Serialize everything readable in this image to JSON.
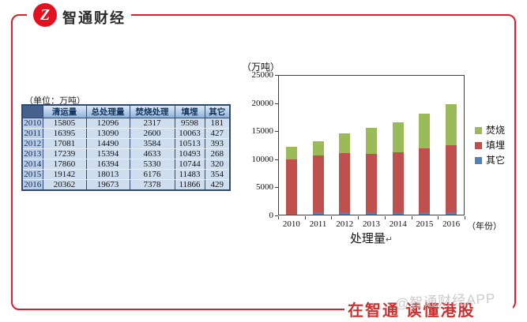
{
  "brand": {
    "logo_letter": "Z",
    "title": "智通财经",
    "accent_color": "#e31c2d"
  },
  "table": {
    "unit_caption": "（单位：万吨）",
    "columns": [
      "",
      "清运量",
      "总处理量",
      "焚烧处理",
      "填埋",
      "其它"
    ],
    "rows": [
      [
        "2010",
        "15805",
        "12096",
        "2317",
        "9598",
        "181"
      ],
      [
        "2011",
        "16395",
        "13090",
        "2600",
        "10063",
        "427"
      ],
      [
        "2012",
        "17081",
        "14490",
        "3584",
        "10513",
        "393"
      ],
      [
        "2013",
        "17239",
        "15394",
        "4633",
        "10493",
        "268"
      ],
      [
        "2014",
        "17860",
        "16394",
        "5330",
        "10744",
        "320"
      ],
      [
        "2015",
        "19142",
        "18013",
        "6176",
        "11483",
        "354"
      ],
      [
        "2016",
        "20362",
        "19673",
        "7378",
        "11866",
        "429"
      ]
    ]
  },
  "chart_data": {
    "type": "bar",
    "stacked": true,
    "title": "处理量",
    "title_mark": "↵",
    "unit_label": "（万吨）",
    "x_axis_label": "（年份）",
    "categories": [
      "2010",
      "2011",
      "2012",
      "2013",
      "2014",
      "2015",
      "2016"
    ],
    "series": [
      {
        "name": "焚烧",
        "color": "#9bbb59",
        "values": [
          2317,
          2600,
          3584,
          4633,
          5330,
          6176,
          7378
        ]
      },
      {
        "name": "填埋",
        "color": "#c0504d",
        "values": [
          9598,
          10063,
          10513,
          10493,
          10744,
          11483,
          11866
        ]
      },
      {
        "name": "其它",
        "color": "#4f81bd",
        "values": [
          181,
          427,
          393,
          268,
          320,
          354,
          429
        ]
      }
    ],
    "stack_order_bottom_up": [
      "其它",
      "填埋",
      "焚烧"
    ],
    "ylim": [
      0,
      25000
    ],
    "yticks": [
      0,
      5000,
      10000,
      15000,
      20000,
      25000
    ],
    "legend_position": "right",
    "grid": false
  },
  "footer": {
    "slogan": "在智通  读懂港股",
    "watermark": "@智通财经APP"
  }
}
